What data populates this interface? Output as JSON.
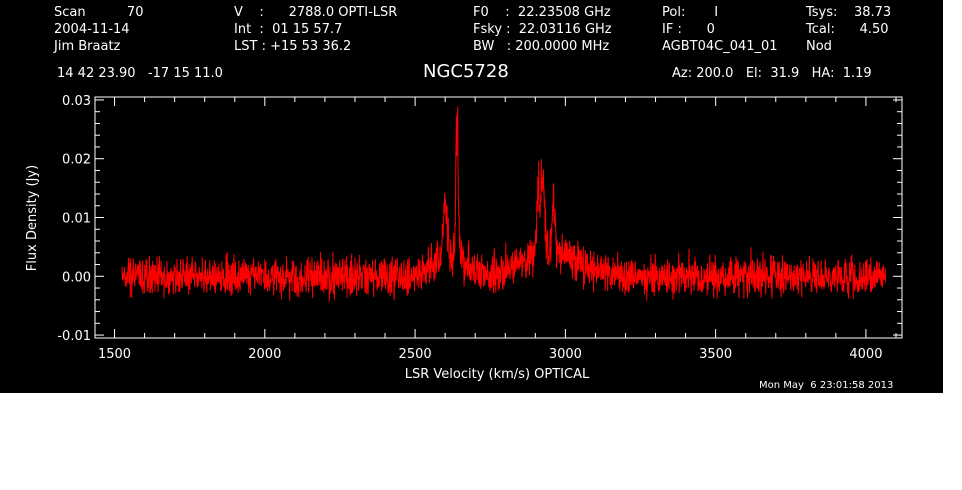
{
  "header": {
    "row1": [
      {
        "id": "scan",
        "text": "Scan          70"
      },
      {
        "id": "velocity",
        "text": "V    :      2788.0 OPTI-LSR"
      },
      {
        "id": "f0",
        "text": "F0    :  22.23508 GHz"
      },
      {
        "id": "pol",
        "text": "Pol:       I"
      },
      {
        "id": "tsys",
        "text": "Tsys:    38.73"
      }
    ],
    "row2": [
      {
        "id": "date",
        "text": "2004-11-14"
      },
      {
        "id": "int",
        "text": "Int  :  01 15 57.7"
      },
      {
        "id": "fsky",
        "text": "Fsky :  22.03116 GHz"
      },
      {
        "id": "if",
        "text": "IF :      0"
      },
      {
        "id": "tcal",
        "text": "Tcal:      4.50"
      }
    ],
    "row3": [
      {
        "id": "observer",
        "text": "Jim Braatz"
      },
      {
        "id": "lst",
        "text": "LST : +15 53 36.2"
      },
      {
        "id": "bw",
        "text": "BW   : 200.0000 MHz"
      },
      {
        "id": "project",
        "text": "AGBT04C_041_01"
      },
      {
        "id": "mode",
        "text": "Nod"
      }
    ],
    "coords": "14 42 23.90   -17 15 11.0",
    "source": "NGC5728",
    "pointing": "Az: 200.0   El:  31.9   HA:  1.19"
  },
  "timestamp": "Mon May  6 23:01:58 2013",
  "colors": {
    "background": "#000000",
    "axes": "#ffffff",
    "spectrum": "#ff0000"
  },
  "chart_data": {
    "type": "line",
    "xlabel": "LSR Velocity (km/s) OPTICAL",
    "ylabel": "Flux Density (Jy)",
    "xlim": [
      1435,
      4120
    ],
    "ylim": [
      -0.0105,
      0.0305
    ],
    "x_ticks": [
      1500,
      2000,
      2500,
      3000,
      3500,
      4000
    ],
    "x_tick_labels": [
      "1500",
      "2000",
      "2500",
      "3000",
      "3500",
      "4000"
    ],
    "y_ticks": [
      -0.01,
      0.0,
      0.01,
      0.02,
      0.03
    ],
    "y_tick_labels": [
      "-0.01",
      "0.00",
      "0.01",
      "0.02",
      "0.03"
    ],
    "series": [
      {
        "color": "#ff0000",
        "x_range": [
          1525,
          4065
        ],
        "noise_rms_jy": 0.0028,
        "features": [
          {
            "center": 2610,
            "width": 50,
            "peak": 0.0035
          },
          {
            "center": 2640,
            "width": 4,
            "peak": 0.0235
          },
          {
            "center": 2600,
            "width": 6,
            "peak": 0.009
          },
          {
            "center": 2950,
            "width": 90,
            "peak": 0.0045
          },
          {
            "center": 2925,
            "width": 6,
            "peak": 0.0135
          },
          {
            "center": 2910,
            "width": 5,
            "peak": 0.009
          },
          {
            "center": 2960,
            "width": 5,
            "peak": 0.008
          }
        ]
      }
    ]
  }
}
